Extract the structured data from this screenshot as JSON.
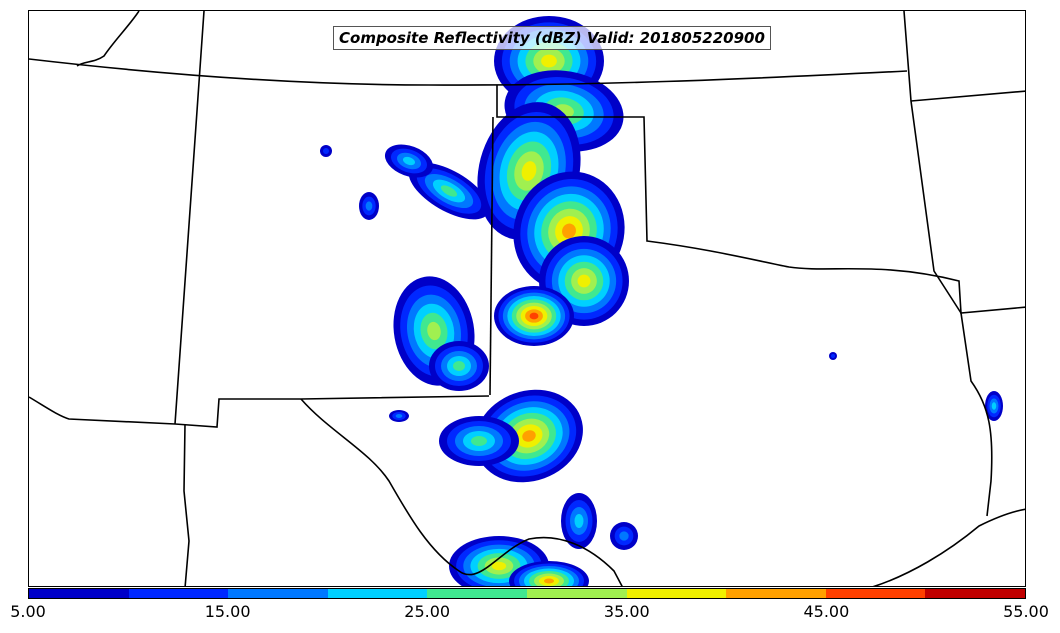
{
  "map": {
    "title": "Composite Reflectivity (dBZ) Valid: 201805220900",
    "variable": "Composite Reflectivity",
    "units": "dBZ",
    "valid_time": "201805220900"
  },
  "colorbar": {
    "levels": [
      5,
      10,
      15,
      20,
      25,
      30,
      35,
      40,
      45,
      50,
      55
    ],
    "colors": [
      "#0000c8",
      "#0028ff",
      "#0078ff",
      "#00d0ff",
      "#40e890",
      "#a0f050",
      "#f0f000",
      "#ffa000",
      "#ff4000",
      "#c00000"
    ],
    "tick_labels": [
      "5.00",
      "15.00",
      "25.00",
      "35.00",
      "45.00",
      "55.00"
    ]
  },
  "colors": {
    "boundaries": "#000000",
    "background": "#ffffff"
  }
}
